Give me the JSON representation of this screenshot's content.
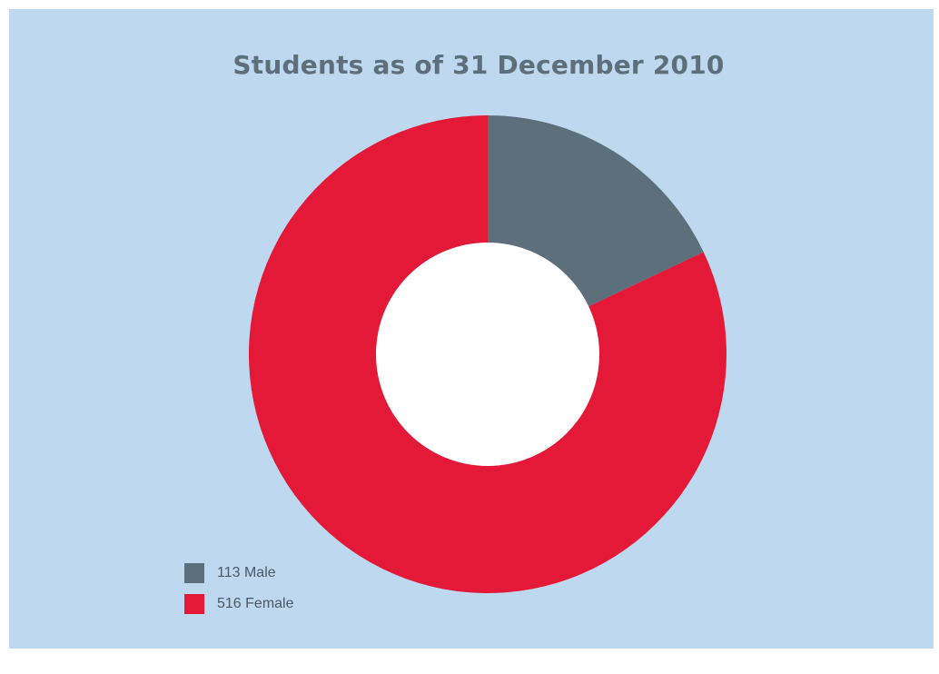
{
  "chart_data": {
    "type": "pie",
    "donut": true,
    "title": "Students as of 31 December 2010",
    "categories": [
      "Male",
      "Female"
    ],
    "values": [
      113,
      516
    ],
    "colors": [
      "#5e6f7c",
      "#e41837"
    ],
    "legend": {
      "placement": "bottom-left",
      "entries": [
        {
          "value": "113",
          "label": "Male",
          "color": "#5e6f7c"
        },
        {
          "value": "516",
          "label": "Female",
          "color": "#e41837"
        }
      ]
    }
  },
  "colors": {
    "background": "#bdd8ef",
    "title": "#5e6f7c",
    "hole": "#ffffff"
  }
}
